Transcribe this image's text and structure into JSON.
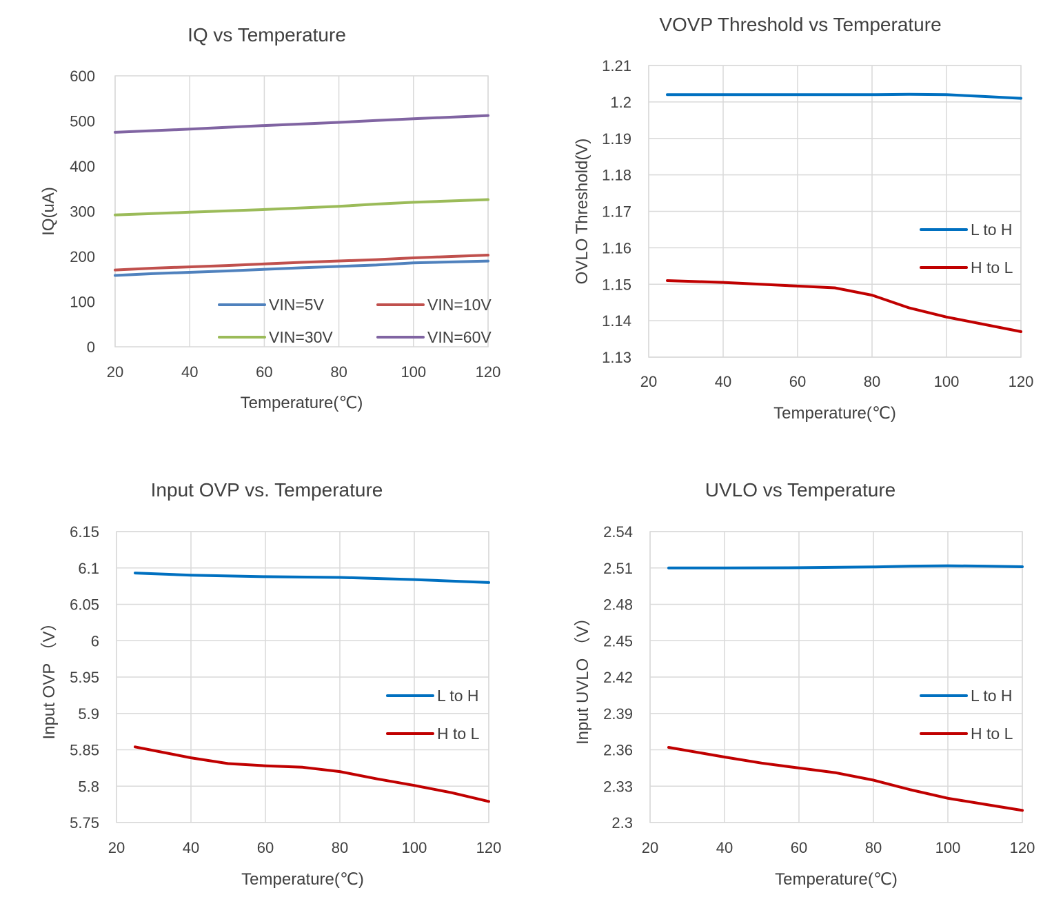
{
  "chart_data": [
    {
      "type": "line",
      "title": "IQ vs Temperature",
      "xlabel": "Temperature(℃)",
      "ylabel": "IQ(uA)",
      "xlim": [
        20,
        120
      ],
      "ylim": [
        0,
        600
      ],
      "xticks": [
        "20",
        "40",
        "60",
        "80",
        "100",
        "120"
      ],
      "yticks": [
        "0",
        "100",
        "200",
        "300",
        "400",
        "500",
        "600"
      ],
      "grid": "vertical",
      "legend": "bottom-right-inside, two columns",
      "series": [
        {
          "name": "VIN=5V",
          "color": "#4f81bd",
          "x": [
            20,
            30,
            50,
            70,
            90,
            100,
            120
          ],
          "y": [
            158,
            162,
            168,
            175,
            181,
            186,
            190
          ]
        },
        {
          "name": "VIN=10V",
          "color": "#c0504d",
          "x": [
            20,
            30,
            50,
            70,
            90,
            100,
            120
          ],
          "y": [
            170,
            174,
            180,
            187,
            193,
            197,
            203
          ]
        },
        {
          "name": "VIN=30V",
          "color": "#9bbb59",
          "x": [
            20,
            40,
            60,
            80,
            90,
            100,
            120
          ],
          "y": [
            292,
            298,
            304,
            311,
            316,
            320,
            326
          ]
        },
        {
          "name": "VIN=60V",
          "color": "#8064a2",
          "x": [
            20,
            40,
            60,
            80,
            90,
            100,
            120
          ],
          "y": [
            475,
            482,
            490,
            497,
            501,
            505,
            512
          ]
        }
      ]
    },
    {
      "type": "line",
      "title": "VOVP Threshold vs Temperature",
      "xlabel": "Temperature(℃)",
      "ylabel": "OVLO Threshold(V)",
      "xlim": [
        20,
        120
      ],
      "ylim": [
        1.13,
        1.21
      ],
      "xticks": [
        "20",
        "40",
        "60",
        "80",
        "100",
        "120"
      ],
      "yticks": [
        "1.13",
        "1.14",
        "1.15",
        "1.16",
        "1.17",
        "1.18",
        "1.19",
        "1.2",
        "1.21"
      ],
      "grid": "both",
      "legend": "right-middle-inside",
      "series": [
        {
          "name": "L to H",
          "color": "#0070c0",
          "x": [
            25,
            40,
            60,
            80,
            90,
            100,
            110,
            120
          ],
          "y": [
            1.202,
            1.202,
            1.202,
            1.202,
            1.2021,
            1.202,
            1.2015,
            1.201
          ]
        },
        {
          "name": "H to L",
          "color": "#c00000",
          "x": [
            25,
            40,
            50,
            60,
            70,
            80,
            90,
            100,
            110,
            120
          ],
          "y": [
            1.151,
            1.1505,
            1.15,
            1.1495,
            1.149,
            1.147,
            1.1435,
            1.141,
            1.139,
            1.137
          ]
        }
      ]
    },
    {
      "type": "line",
      "title": "Input OVP vs. Temperature",
      "xlabel": "Temperature(℃)",
      "ylabel": "Input OVP （V）",
      "xlim": [
        20,
        120
      ],
      "ylim": [
        5.75,
        6.15
      ],
      "xticks": [
        "20",
        "40",
        "60",
        "80",
        "100",
        "120"
      ],
      "yticks": [
        "5.75",
        "5.8",
        "5.85",
        "5.9",
        "5.95",
        "6",
        "6.05",
        "6.1",
        "6.15"
      ],
      "grid": "both",
      "legend": "right-middle-inside",
      "series": [
        {
          "name": "L to H",
          "color": "#0070c0",
          "x": [
            25,
            40,
            60,
            80,
            100,
            120
          ],
          "y": [
            6.093,
            6.09,
            6.088,
            6.087,
            6.084,
            6.08
          ]
        },
        {
          "name": "H to L",
          "color": "#c00000",
          "x": [
            25,
            40,
            50,
            60,
            70,
            80,
            90,
            100,
            110,
            120
          ],
          "y": [
            5.854,
            5.839,
            5.831,
            5.828,
            5.826,
            5.82,
            5.81,
            5.801,
            5.791,
            5.779
          ]
        }
      ]
    },
    {
      "type": "line",
      "title": "UVLO vs Temperature",
      "xlabel": "Temperature(℃)",
      "ylabel": "Input UVLO （V）",
      "xlim": [
        20,
        120
      ],
      "ylim": [
        2.3,
        2.54
      ],
      "xticks": [
        "20",
        "40",
        "60",
        "80",
        "100",
        "120"
      ],
      "yticks": [
        "2.3",
        "2.33",
        "2.36",
        "2.39",
        "2.42",
        "2.45",
        "2.48",
        "2.51",
        "2.54"
      ],
      "grid": "both",
      "legend": "right-middle-inside",
      "series": [
        {
          "name": "L to H",
          "color": "#0070c0",
          "x": [
            25,
            40,
            60,
            80,
            90,
            100,
            110,
            120
          ],
          "y": [
            2.51,
            2.51,
            2.5102,
            2.5108,
            2.5115,
            2.5118,
            2.5115,
            2.511
          ]
        },
        {
          "name": "H to L",
          "color": "#c00000",
          "x": [
            25,
            40,
            50,
            60,
            70,
            80,
            90,
            100,
            110,
            120
          ],
          "y": [
            2.362,
            2.354,
            2.349,
            2.345,
            2.341,
            2.335,
            2.327,
            2.32,
            2.315,
            2.31
          ]
        }
      ]
    }
  ]
}
